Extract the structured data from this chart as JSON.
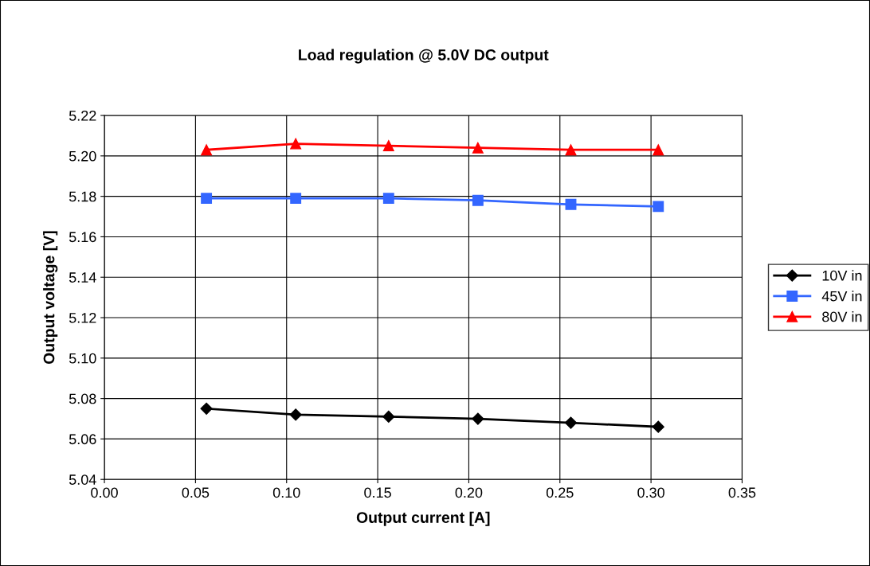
{
  "chart_data": {
    "type": "line",
    "title": "Load regulation @ 5.0V DC output",
    "xlabel": "Output current [A]",
    "ylabel": "Output voltage [V]",
    "xlim": [
      0,
      0.35
    ],
    "xticks": [
      {
        "value": 0,
        "label": "0.00"
      },
      {
        "value": 0.05,
        "label": "0.05"
      },
      {
        "value": 0.1,
        "label": "0.10"
      },
      {
        "value": 0.15,
        "label": "0.15"
      },
      {
        "value": 0.2,
        "label": "0.20"
      },
      {
        "value": 0.25,
        "label": "0.25"
      },
      {
        "value": 0.3,
        "label": "0.30"
      },
      {
        "value": 0.35,
        "label": "0.35"
      }
    ],
    "ylim": [
      5.04,
      5.22
    ],
    "yticks": [
      {
        "value": 5.04,
        "label": "5.04"
      },
      {
        "value": 5.06,
        "label": "5.06"
      },
      {
        "value": 5.08,
        "label": "5.08"
      },
      {
        "value": 5.1,
        "label": "5.10"
      },
      {
        "value": 5.12,
        "label": "5.12"
      },
      {
        "value": 5.14,
        "label": "5.14"
      },
      {
        "value": 5.16,
        "label": "5.16"
      },
      {
        "value": 5.18,
        "label": "5.18"
      },
      {
        "value": 5.2,
        "label": "5.20"
      },
      {
        "value": 5.22,
        "label": "5.22"
      }
    ],
    "x": [
      0.056,
      0.105,
      0.156,
      0.205,
      0.256,
      0.304
    ],
    "series": [
      {
        "name": "10V in",
        "color": "#000000",
        "marker": "diamond",
        "values": [
          5.075,
          5.072,
          5.071,
          5.07,
          5.068,
          5.066
        ]
      },
      {
        "name": "45V in",
        "color": "#3366ff",
        "marker": "square",
        "values": [
          5.179,
          5.179,
          5.179,
          5.178,
          5.176,
          5.175
        ]
      },
      {
        "name": "80V in",
        "color": "#ff0000",
        "marker": "triangle",
        "values": [
          5.203,
          5.206,
          5.205,
          5.204,
          5.203,
          5.203
        ]
      }
    ],
    "grid": true,
    "legend": "right",
    "line_style": "solid"
  }
}
